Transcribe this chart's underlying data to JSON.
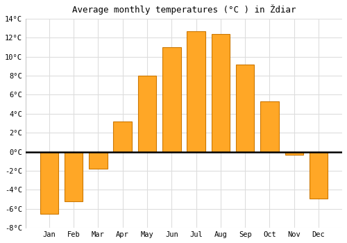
{
  "title": "Average monthly temperatures (°C ) in Ždiar",
  "months": [
    "Jan",
    "Feb",
    "Mar",
    "Apr",
    "May",
    "Jun",
    "Jul",
    "Aug",
    "Sep",
    "Oct",
    "Nov",
    "Dec"
  ],
  "values": [
    -6.5,
    -5.2,
    -1.8,
    3.2,
    8.0,
    11.0,
    12.7,
    12.4,
    9.2,
    5.3,
    -0.3,
    -4.9
  ],
  "bar_color": "#FFA726",
  "bar_edge_color": "#CC7700",
  "background_color": "#ffffff",
  "plot_bg_color": "#ffffff",
  "grid_color": "#dddddd",
  "ylim": [
    -8,
    14
  ],
  "yticks": [
    -8,
    -6,
    -4,
    -2,
    0,
    2,
    4,
    6,
    8,
    10,
    12,
    14
  ],
  "zero_line_color": "#000000",
  "title_fontsize": 9,
  "tick_fontsize": 7.5,
  "font_family": "monospace"
}
